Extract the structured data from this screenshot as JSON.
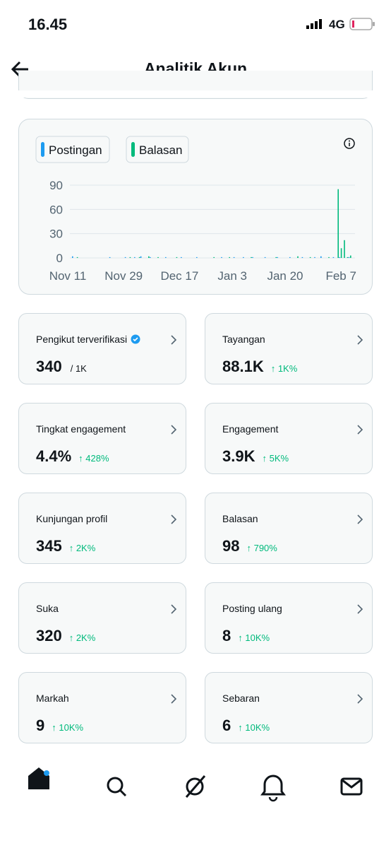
{
  "status_bar": {
    "time": "16.45",
    "network": "4G"
  },
  "header": {
    "title": "Analitik Akun"
  },
  "chart_data": {
    "type": "bar",
    "categories": [
      "Nov 11",
      null,
      null,
      null,
      null,
      null,
      null,
      null,
      null,
      null,
      null,
      null,
      null,
      null,
      null,
      null,
      null,
      null,
      "Nov 29",
      null,
      null,
      null,
      null,
      null,
      null,
      null,
      null,
      null,
      null,
      null,
      null,
      null,
      null,
      null,
      null,
      null,
      "Dec 17",
      null,
      null,
      null,
      null,
      null,
      null,
      null,
      null,
      null,
      null,
      null,
      null,
      null,
      null,
      null,
      null,
      "Jan 3",
      null,
      null,
      null,
      null,
      null,
      null,
      null,
      null,
      null,
      null,
      null,
      null,
      null,
      null,
      null,
      null,
      "Jan 20",
      null,
      null,
      null,
      null,
      null,
      null,
      null,
      null,
      null,
      null,
      null,
      null,
      null,
      null,
      null,
      null,
      null,
      "Feb 7",
      null,
      null
    ],
    "series": [
      {
        "name": "Postingan",
        "color": "#1d9bf0",
        "values": [
          2,
          0,
          0,
          0,
          0,
          0,
          0,
          0,
          0,
          0,
          0,
          0,
          1,
          0,
          0,
          0,
          0,
          1,
          0,
          0,
          1,
          0,
          2,
          0,
          0,
          1,
          0,
          0,
          0,
          0,
          1,
          0,
          0,
          0,
          0,
          1,
          0,
          0,
          0,
          0,
          1,
          0,
          0,
          0,
          0,
          0,
          0,
          0,
          1,
          0,
          0,
          0,
          1,
          0,
          0,
          1,
          0,
          0,
          1,
          0,
          0,
          0,
          1,
          0,
          0,
          0,
          1,
          0,
          0,
          0,
          1,
          0,
          0,
          0,
          1,
          0,
          0,
          0,
          1,
          0,
          2,
          0,
          0,
          0,
          1,
          0,
          1,
          0,
          0,
          1,
          0
        ]
      },
      {
        "name": "Balasan",
        "color": "#00ba7c",
        "values": [
          0,
          1,
          0,
          0,
          0,
          0,
          0,
          0,
          0,
          0,
          0,
          0,
          0,
          0,
          0,
          0,
          0,
          0,
          1,
          0,
          0,
          1,
          0,
          0,
          2,
          0,
          0,
          1,
          0,
          0,
          0,
          0,
          0,
          1,
          0,
          0,
          0,
          0,
          0,
          0,
          0,
          0,
          0,
          0,
          0,
          1,
          0,
          0,
          0,
          0,
          1,
          0,
          0,
          0,
          0,
          0,
          0,
          1,
          0,
          0,
          0,
          0,
          0,
          0,
          0,
          1,
          0,
          0,
          0,
          0,
          0,
          0,
          2,
          0,
          0,
          0,
          1,
          0,
          0,
          0,
          0,
          0,
          1,
          0,
          0,
          85,
          12,
          22,
          1,
          3,
          0
        ]
      }
    ],
    "ylim": [
      0,
      90
    ],
    "yticks": [
      0,
      30,
      60,
      90
    ],
    "grid": true
  },
  "metrics": [
    {
      "label": "Pengikut terverifikasi",
      "value": "340",
      "suffix": "/ 1K"
    },
    {
      "label": "Tayangan",
      "value": "88.1K",
      "change": "↑ 1K%"
    },
    {
      "label": "Tingkat engagement",
      "value": "4.4%",
      "change": "↑ 428%"
    },
    {
      "label": "Engagement",
      "value": "3.9K",
      "change": "↑ 5K%"
    },
    {
      "label": "Kunjungan profil",
      "value": "345",
      "change": "↑ 2K%"
    },
    {
      "label": "Balasan",
      "value": "98",
      "change": "↑ 790%"
    },
    {
      "label": "Suka",
      "value": "320",
      "change": "↑ 2K%"
    },
    {
      "label": "Posting ulang",
      "value": "8",
      "change": "↑ 10K%"
    },
    {
      "label": "Markah",
      "value": "9",
      "change": "↑ 10K%"
    },
    {
      "label": "Sebaran",
      "value": "6",
      "change": "↑ 10K%"
    }
  ]
}
